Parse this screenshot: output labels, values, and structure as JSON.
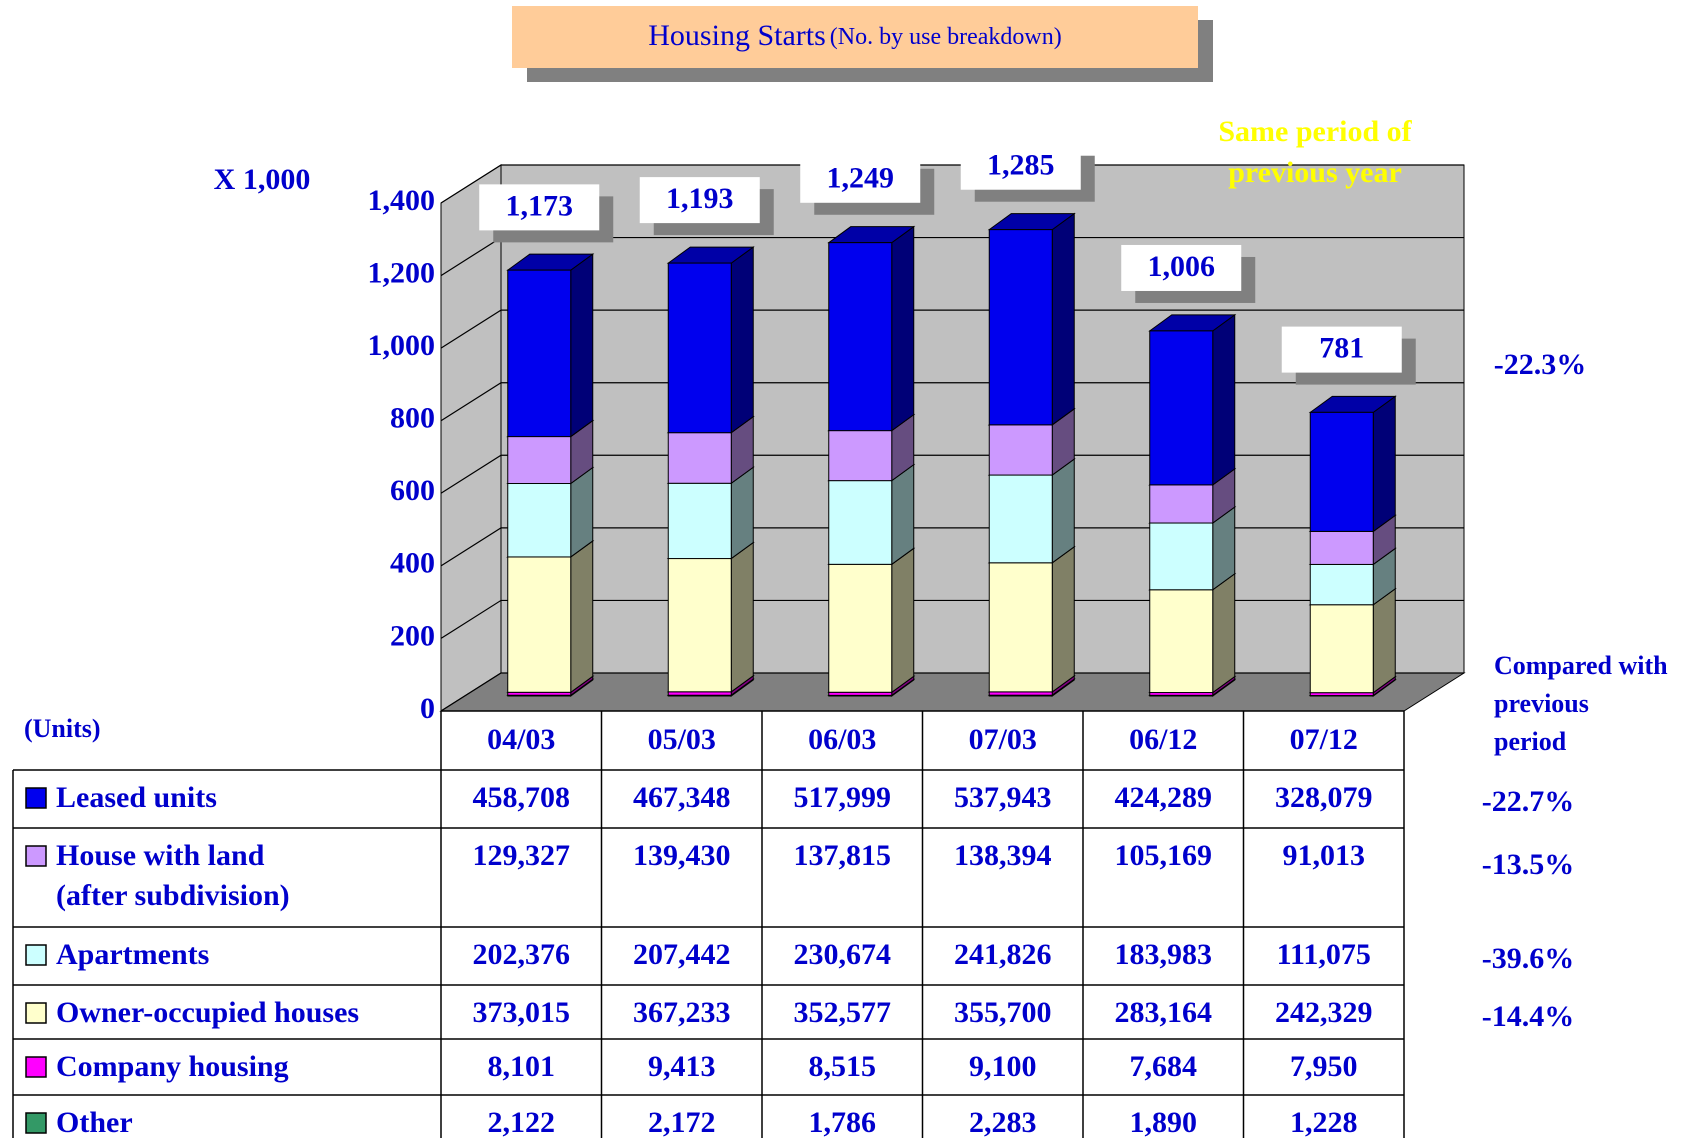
{
  "chart_data": {
    "type": "bar",
    "stacked": true,
    "title": "Housing Starts",
    "subtitle": "(No. by use breakdown)",
    "y_axis_label": "X 1,000",
    "table_unit_label": "(Units)",
    "annotation": [
      "Same period of",
      "previous year"
    ],
    "change_header": [
      "Compared with",
      "previous",
      "period"
    ],
    "categories": [
      "04/03",
      "05/03",
      "06/03",
      "07/03",
      "06/12",
      "07/12"
    ],
    "totals": [
      1173,
      1193,
      1249,
      1285,
      1006,
      781
    ],
    "total_labels": [
      "1,173",
      "1,193",
      "1,249",
      "1,285",
      "1,006",
      "781"
    ],
    "total_change": "-22.3%",
    "series": [
      {
        "name": "Leased units",
        "color": "#0000ee",
        "change": "-22.7%",
        "values": [
          458.708,
          467.348,
          517.999,
          537.943,
          424.289,
          328.079
        ],
        "value_labels": [
          "458,708",
          "467,348",
          "517,999",
          "537,943",
          "424,289",
          "328,079"
        ]
      },
      {
        "name": "House with land\n(after subdivision)",
        "color": "#cc99ff",
        "change": "-13.5%",
        "values": [
          129.327,
          139.43,
          137.815,
          138.394,
          105.169,
          91.013
        ],
        "value_labels": [
          "129,327",
          "139,430",
          "137,815",
          "138,394",
          "105,169",
          "91,013"
        ]
      },
      {
        "name": "Apartments",
        "color": "#ccffff",
        "change": "-39.6%",
        "values": [
          202.376,
          207.442,
          230.674,
          241.826,
          183.983,
          111.075
        ],
        "value_labels": [
          "202,376",
          "207,442",
          "230,674",
          "241,826",
          "183,983",
          "111,075"
        ]
      },
      {
        "name": "Owner-occupied houses",
        "color": "#ffffcc",
        "change": "-14.4%",
        "values": [
          373.015,
          367.233,
          352.577,
          355.7,
          283.164,
          242.329
        ],
        "value_labels": [
          "373,015",
          "367,233",
          "352,577",
          "355,700",
          "283,164",
          "242,329"
        ]
      },
      {
        "name": "Company housing",
        "color": "#ff00ff",
        "values": [
          8.101,
          9.413,
          8.515,
          9.1,
          7.684,
          7.95
        ],
        "value_labels": [
          "8,101",
          "9,413",
          "8,515",
          "9,100",
          "7,684",
          "7,950"
        ]
      },
      {
        "name": "Other",
        "color": "#339966",
        "values": [
          2.122,
          2.172,
          1.786,
          2.283,
          1.89,
          1.228
        ],
        "value_labels": [
          "2,122",
          "2,172",
          "1,786",
          "2,283",
          "1,890",
          "1,228"
        ]
      }
    ],
    "ylim": [
      0,
      1400
    ],
    "yticks": [
      0,
      200,
      400,
      600,
      800,
      {
        "value": 1000,
        "label": "1,000"
      },
      {
        "value": 1200,
        "label": "1,200"
      },
      {
        "value": 1400,
        "label": "1,400"
      }
    ],
    "grid": true
  }
}
